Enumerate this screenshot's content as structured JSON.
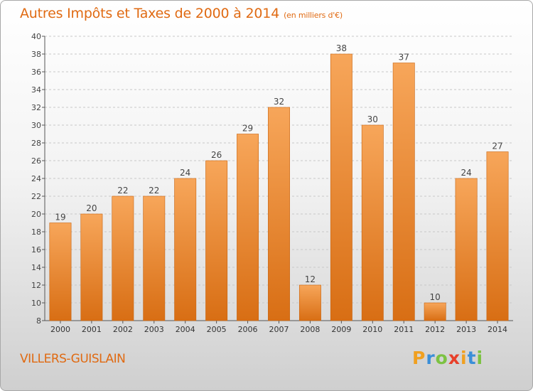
{
  "title": "Autres Impôts et Taxes de 2000 à 2014",
  "subtitle": "(en milliers d'€)",
  "location": "VILLERS-GUISLAIN",
  "logo": {
    "letters": [
      "P",
      "r",
      "o",
      "x",
      "i",
      "t",
      "i"
    ],
    "colors": [
      "#f0a020",
      "#3a8fd8",
      "#7cc242",
      "#e8402a",
      "#f0a020",
      "#3a8fd8",
      "#7cc242"
    ]
  },
  "colors": {
    "accent": "#e06a12",
    "bar_top": "#f7a65a",
    "bar_bottom": "#d86e14",
    "grid": "#c8c8c8"
  },
  "chart_data": {
    "type": "bar",
    "categories": [
      "2000",
      "2001",
      "2002",
      "2003",
      "2004",
      "2005",
      "2006",
      "2007",
      "2008",
      "2009",
      "2010",
      "2011",
      "2012",
      "2013",
      "2014"
    ],
    "values": [
      19,
      20,
      22,
      22,
      24,
      26,
      29,
      32,
      12,
      38,
      30,
      37,
      10,
      24,
      27
    ],
    "ylim": [
      8,
      40
    ],
    "yticks": [
      8,
      10,
      12,
      14,
      16,
      18,
      20,
      22,
      24,
      26,
      28,
      30,
      32,
      34,
      36,
      38,
      40
    ],
    "grid": "horizontal",
    "xlabel": "",
    "ylabel": ""
  }
}
